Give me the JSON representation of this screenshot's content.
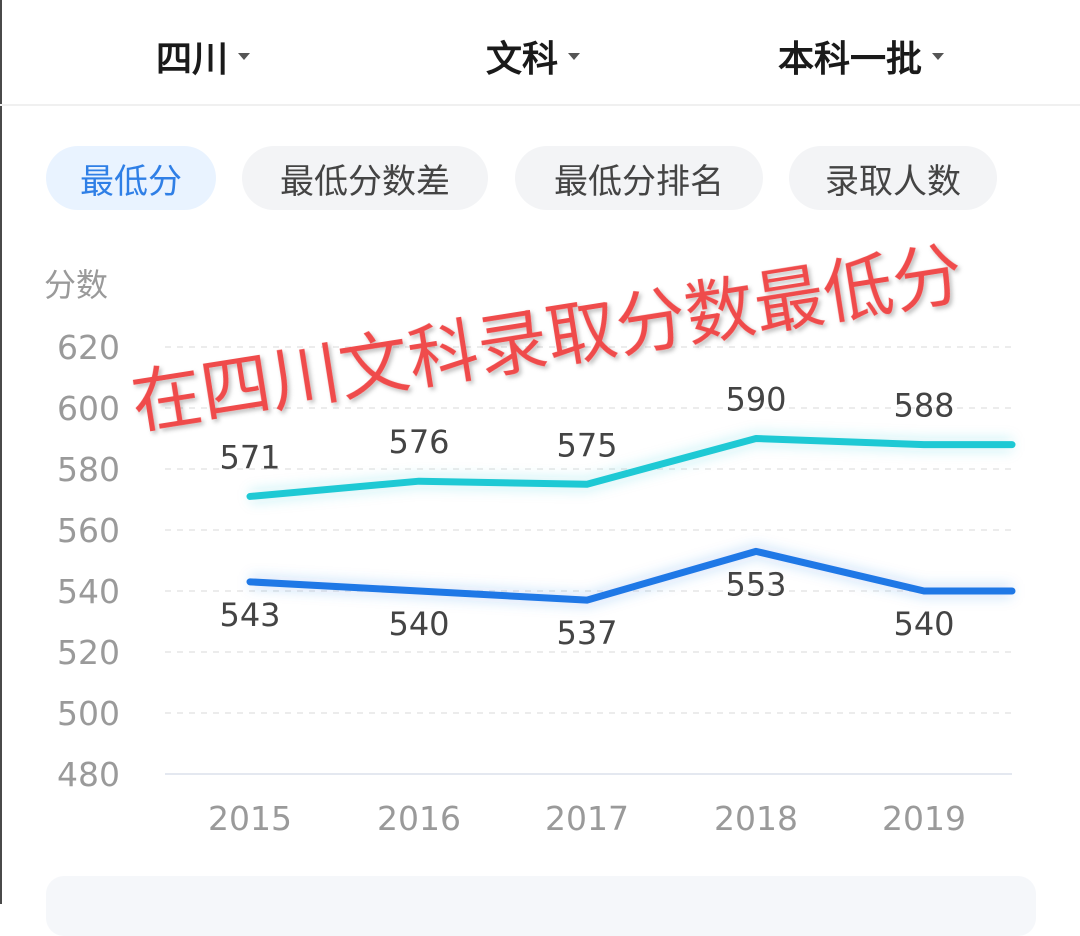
{
  "filters": [
    {
      "label": "四川"
    },
    {
      "label": "文科"
    },
    {
      "label": "本科一批"
    }
  ],
  "tabs": [
    {
      "label": "最低分",
      "active": true
    },
    {
      "label": "最低分数差",
      "active": false
    },
    {
      "label": "最低分排名",
      "active": false
    },
    {
      "label": "录取人数",
      "active": false
    }
  ],
  "overlay_text": "在四川文科录取分数最低分",
  "chart_data": {
    "type": "line",
    "ylabel": "分数",
    "ylim": [
      480,
      620
    ],
    "yticks": [
      480,
      500,
      520,
      540,
      560,
      580,
      600,
      620
    ],
    "categories": [
      "2015",
      "2016",
      "2017",
      "2018",
      "2019"
    ],
    "grid": true,
    "series": [
      {
        "values": [
          571,
          576,
          575,
          590,
          588
        ],
        "color": "#1ec9d4",
        "labels_position": "above"
      },
      {
        "values": [
          543,
          540,
          537,
          553,
          540
        ],
        "color": "#1f78e6",
        "labels_position": "below"
      }
    ]
  }
}
